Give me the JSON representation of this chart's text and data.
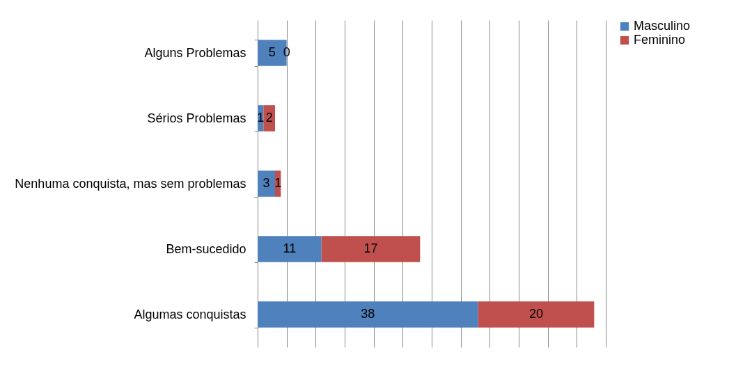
{
  "chart_data": {
    "type": "bar",
    "orientation": "horizontal",
    "stacked": true,
    "data_labels": true,
    "legend": "right",
    "grid": "x",
    "categories": [
      "Alguns Problemas",
      "Sérios Problemas",
      "Nenhuma conquista, mas sem problemas",
      "Bem-sucedido",
      "Algumas conquistas"
    ],
    "series": [
      {
        "name": "Masculino",
        "color": "#4f81bd",
        "values": [
          5,
          1,
          3,
          11,
          38
        ]
      },
      {
        "name": "Feminino",
        "color": "#c0504d",
        "values": [
          0,
          2,
          1,
          17,
          20
        ]
      }
    ]
  }
}
